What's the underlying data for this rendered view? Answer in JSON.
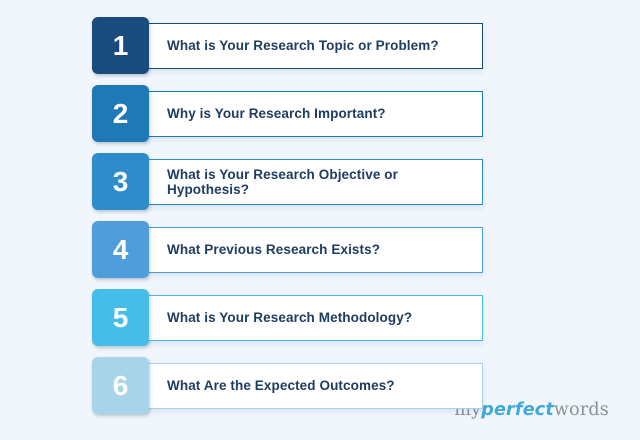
{
  "page": {
    "background_color": "#f1f6fd",
    "text_color": "#1f3d61"
  },
  "steps": [
    {
      "number": "1",
      "label": "What is Your Research Topic or Problem?",
      "color": "#1a4b7d"
    },
    {
      "number": "2",
      "label": "Why is Your Research Important?",
      "color": "#1e79b6"
    },
    {
      "number": "3",
      "label": "What is Your Research Objective or Hypothesis?",
      "color": "#2d8cc9"
    },
    {
      "number": "4",
      "label": "What Previous Research Exists?",
      "color": "#4f9edb"
    },
    {
      "number": "5",
      "label": "What is Your Research Methodology?",
      "color": "#46bde8"
    },
    {
      "number": "6",
      "label": "What Are the Expected Outcomes?",
      "color": "#a7d4e8"
    }
  ],
  "brand": {
    "my": "my",
    "perfect": "perfect",
    "words": "words",
    "accent_color": "#3fa9dc",
    "gray_color": "#8a9097"
  }
}
